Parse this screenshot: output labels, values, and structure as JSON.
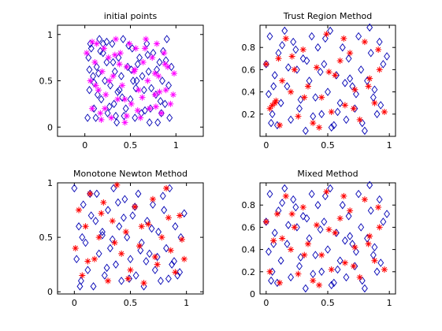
{
  "colors": {
    "blue_diamond": "#0000b4",
    "magenta_star": "#ff00ff",
    "red_star": "#ff0000"
  },
  "chart_data": [
    {
      "type": "scatter",
      "title": "initial points",
      "xlim": [
        -0.3,
        1.3
      ],
      "ylim": [
        -0.1,
        1.1
      ],
      "xticks": [
        0,
        0.5,
        1
      ],
      "xtick_labels": [
        "0",
        "0.5",
        "1"
      ],
      "yticks": [
        0,
        0.5,
        1
      ],
      "ytick_labels": [
        "0",
        "0.5",
        "1"
      ],
      "grid": false,
      "series": [
        {
          "marker": "diamond",
          "color": "#0000b4",
          "x": [
            0.03,
            0.05,
            0.04,
            0.06,
            0.1,
            0.09,
            0.07,
            0.12,
            0.14,
            0.13,
            0.16,
            0.18,
            0.2,
            0.22,
            0.25,
            0.24,
            0.28,
            0.3,
            0.32,
            0.33,
            0.35,
            0.37,
            0.38,
            0.4,
            0.42,
            0.45,
            0.47,
            0.5,
            0.52,
            0.55,
            0.57,
            0.6,
            0.62,
            0.65,
            0.68,
            0.7,
            0.72,
            0.75,
            0.78,
            0.8,
            0.82,
            0.85,
            0.88,
            0.9,
            0.92,
            0.95,
            0.15,
            0.27,
            0.43,
            0.58,
            0.73,
            0.86,
            0.2,
            0.36,
            0.51,
            0.66,
            0.83,
            0.1,
            0.31,
            0.48,
            0.63,
            0.79,
            0.93,
            0.05,
            0.24,
            0.41,
            0.56,
            0.71,
            0.89,
            0.17,
            0.34,
            0.53,
            0.69,
            0.84
          ],
          "y": [
            0.1,
            0.4,
            0.75,
            0.9,
            0.2,
            0.55,
            0.85,
            0.1,
            0.35,
            0.65,
            0.95,
            0.3,
            0.8,
            0.5,
            0.15,
            0.7,
            0.45,
            0.9,
            0.25,
            0.6,
            0.05,
            0.75,
            0.4,
            0.55,
            0.95,
            0.2,
            0.65,
            0.3,
            0.85,
            0.1,
            0.5,
            0.75,
            0.15,
            0.4,
            0.9,
            0.6,
            0.2,
            0.8,
            0.35,
            0.05,
            0.7,
            0.5,
            0.25,
            0.95,
            0.45,
            0.65,
            0.58,
            0.22,
            0.12,
            0.68,
            0.42,
            0.82,
            0.9,
            0.38,
            0.62,
            0.18,
            0.28,
            0.48,
            0.7,
            0.88,
            0.55,
            0.62,
            0.1,
            0.62,
            0.92,
            0.32,
            0.42,
            0.05,
            0.72,
            0.82,
            0.12,
            0.5,
            0.78,
            0.15
          ]
        },
        {
          "marker": "star",
          "color": "#ff00ff",
          "x": [
            0.02,
            0.06,
            0.08,
            0.11,
            0.13,
            0.15,
            0.17,
            0.19,
            0.21,
            0.23,
            0.26,
            0.29,
            0.31,
            0.34,
            0.36,
            0.39,
            0.41,
            0.44,
            0.46,
            0.49,
            0.51,
            0.54,
            0.56,
            0.59,
            0.61,
            0.64,
            0.67,
            0.69,
            0.71,
            0.74,
            0.77,
            0.79,
            0.81,
            0.84,
            0.87,
            0.89,
            0.91,
            0.94,
            0.97,
            0.12,
            0.22,
            0.33,
            0.44,
            0.55,
            0.66,
            0.77,
            0.88,
            0.08,
            0.27,
            0.46,
            0.63,
            0.82,
            0.18,
            0.38,
            0.58,
            0.78,
            0.98
          ],
          "y": [
            0.8,
            0.5,
            0.2,
            0.7,
            0.9,
            0.4,
            0.15,
            0.6,
            0.85,
            0.35,
            0.75,
            0.1,
            0.55,
            0.95,
            0.3,
            0.8,
            0.45,
            0.05,
            0.65,
            0.9,
            0.25,
            0.6,
            0.85,
            0.4,
            0.1,
            0.7,
            0.95,
            0.5,
            0.2,
            0.75,
            0.35,
            0.9,
            0.55,
            0.15,
            0.8,
            0.4,
            0.65,
            0.25,
            0.35,
            0.45,
            0.2,
            0.78,
            0.3,
            0.62,
            0.85,
            0.58,
            0.68,
            0.92,
            0.5,
            0.12,
            0.32,
            0.38,
            0.08,
            0.68,
            0.18,
            0.22,
            0.58
          ]
        }
      ]
    },
    {
      "type": "scatter",
      "title": "Trust Region Method",
      "xlim": [
        -0.05,
        1.05
      ],
      "ylim": [
        0,
        1.0
      ],
      "xticks": [
        0,
        0.5,
        1
      ],
      "xtick_labels": [
        "0",
        "0.5",
        "1"
      ],
      "yticks": [
        0.2,
        0.4,
        0.6,
        0.8
      ],
      "ytick_labels": [
        "0.2",
        "0.4",
        "0.6",
        "0.8"
      ],
      "grid": false,
      "series": [
        {
          "marker": "diamond",
          "color": "#0000b4",
          "x": [
            0.0,
            0.02,
            0.03,
            0.05,
            0.07,
            0.09,
            0.1,
            0.12,
            0.15,
            0.17,
            0.2,
            0.22,
            0.25,
            0.27,
            0.3,
            0.32,
            0.35,
            0.37,
            0.4,
            0.42,
            0.45,
            0.47,
            0.5,
            0.52,
            0.55,
            0.57,
            0.6,
            0.62,
            0.65,
            0.67,
            0.7,
            0.72,
            0.75,
            0.77,
            0.8,
            0.82,
            0.85,
            0.87,
            0.9,
            0.92,
            0.95,
            0.98,
            0.06,
            0.18,
            0.28,
            0.38,
            0.48,
            0.58,
            0.68,
            0.78,
            0.88,
            0.13,
            0.33,
            0.53,
            0.73,
            0.93,
            0.04,
            0.24,
            0.44,
            0.64,
            0.84
          ],
          "y": [
            0.65,
            0.38,
            0.9,
            0.2,
            0.55,
            0.1,
            0.75,
            0.3,
            0.95,
            0.45,
            0.15,
            0.85,
            0.6,
            0.25,
            0.7,
            0.05,
            0.5,
            0.9,
            0.35,
            0.8,
            0.2,
            0.65,
            0.4,
            0.95,
            0.1,
            0.55,
            0.3,
            0.8,
            0.15,
            0.7,
            0.45,
            0.25,
            0.9,
            0.6,
            0.05,
            0.5,
            0.75,
            0.35,
            0.2,
            0.85,
            0.65,
            0.72,
            0.45,
            0.62,
            0.33,
            0.18,
            0.88,
            0.22,
            0.52,
            0.12,
            0.42,
            0.82,
            0.68,
            0.08,
            0.38,
            0.28,
            0.12,
            0.78,
            0.58,
            0.48,
            0.98
          ]
        },
        {
          "marker": "star",
          "color": "#ff0000",
          "x": [
            0.0,
            0.03,
            0.05,
            0.07,
            0.08,
            0.1,
            0.13,
            0.16,
            0.2,
            0.23,
            0.26,
            0.3,
            0.34,
            0.38,
            0.41,
            0.45,
            0.49,
            0.53,
            0.56,
            0.6,
            0.64,
            0.68,
            0.72,
            0.76,
            0.8,
            0.84,
            0.88,
            0.92,
            0.96,
            0.11,
            0.21,
            0.31,
            0.43,
            0.51,
            0.63,
            0.71,
            0.83,
            0.91
          ],
          "y": [
            0.65,
            0.25,
            0.28,
            0.3,
            0.32,
            0.7,
            0.5,
            0.88,
            0.4,
            0.6,
            0.18,
            0.78,
            0.45,
            0.12,
            0.62,
            0.35,
            0.92,
            0.22,
            0.55,
            0.68,
            0.28,
            0.75,
            0.42,
            0.15,
            0.85,
            0.52,
            0.3,
            0.6,
            0.22,
            0.1,
            0.72,
            0.35,
            0.08,
            0.58,
            0.88,
            0.25,
            0.45,
            0.78
          ]
        }
      ]
    },
    {
      "type": "scatter",
      "title": "Monotone Newton Method",
      "xlim": [
        -0.15,
        1.15
      ],
      "ylim": [
        -0.02,
        1.0
      ],
      "xticks": [
        0,
        0.5,
        1
      ],
      "xtick_labels": [
        "0",
        "0.5",
        "1"
      ],
      "yticks": [
        0,
        0.5,
        1
      ],
      "ytick_labels": [
        "0",
        "0.5",
        "1"
      ],
      "grid": false,
      "series": [
        {
          "marker": "diamond",
          "color": "#0000b4",
          "x": [
            0.0,
            0.02,
            0.04,
            0.06,
            0.08,
            0.1,
            0.12,
            0.15,
            0.17,
            0.2,
            0.22,
            0.25,
            0.27,
            0.3,
            0.32,
            0.35,
            0.37,
            0.4,
            0.42,
            0.45,
            0.47,
            0.5,
            0.52,
            0.55,
            0.57,
            0.6,
            0.62,
            0.65,
            0.67,
            0.7,
            0.72,
            0.75,
            0.77,
            0.8,
            0.82,
            0.85,
            0.87,
            0.9,
            0.92,
            0.95,
            0.98,
            0.07,
            0.19,
            0.29,
            0.39,
            0.49,
            0.59,
            0.69,
            0.79,
            0.89,
            0.14,
            0.34,
            0.54,
            0.74,
            0.94,
            0.05,
            0.25,
            0.44,
            0.64,
            0.84
          ],
          "y": [
            0.95,
            0.3,
            0.6,
            0.1,
            0.8,
            0.45,
            0.2,
            0.7,
            0.05,
            0.9,
            0.35,
            0.55,
            0.15,
            0.75,
            0.4,
            0.95,
            0.25,
            0.6,
            0.1,
            0.85,
            0.5,
            0.3,
            0.7,
            0.15,
            0.9,
            0.45,
            0.05,
            0.65,
            0.35,
            0.8,
            0.2,
            0.55,
            0.1,
            0.75,
            0.4,
            0.95,
            0.25,
            0.6,
            0.15,
            0.5,
            0.72,
            0.5,
            0.65,
            0.22,
            0.82,
            0.12,
            0.38,
            0.58,
            0.88,
            0.28,
            0.9,
            0.48,
            0.78,
            0.32,
            0.18,
            0.05,
            0.52,
            0.68,
            0.28,
            0.12
          ]
        },
        {
          "marker": "star",
          "color": "#ff0000",
          "x": [
            0.01,
            0.04,
            0.07,
            0.1,
            0.14,
            0.18,
            0.22,
            0.26,
            0.3,
            0.34,
            0.38,
            0.42,
            0.46,
            0.5,
            0.54,
            0.58,
            0.62,
            0.66,
            0.7,
            0.74,
            0.78,
            0.82,
            0.86,
            0.9,
            0.94,
            0.98,
            0.12,
            0.24,
            0.36,
            0.48,
            0.6,
            0.72,
            0.84,
            0.96
          ],
          "y": [
            0.4,
            0.75,
            0.15,
            0.6,
            0.9,
            0.3,
            0.5,
            0.82,
            0.1,
            0.65,
            0.98,
            0.35,
            0.55,
            0.2,
            0.78,
            0.42,
            0.08,
            0.62,
            0.85,
            0.25,
            0.5,
            0.95,
            0.38,
            0.18,
            0.7,
            0.3,
            0.28,
            0.72,
            0.45,
            0.12,
            0.6,
            0.32,
            0.68,
            0.48
          ]
        }
      ]
    },
    {
      "type": "scatter",
      "title": "Mixed Method",
      "xlim": [
        -0.05,
        1.05
      ],
      "ylim": [
        0,
        1.0
      ],
      "xticks": [
        0,
        0.5,
        1
      ],
      "xtick_labels": [
        "0",
        "0.5",
        "1"
      ],
      "yticks": [
        0,
        0.2,
        0.4,
        0.6,
        0.8
      ],
      "ytick_labels": [
        "0",
        "0.2",
        "0.4",
        "0.6",
        "0.8"
      ],
      "grid": false,
      "series": [
        {
          "marker": "diamond",
          "color": "#0000b4",
          "x": [
            0.0,
            0.02,
            0.03,
            0.05,
            0.07,
            0.09,
            0.1,
            0.12,
            0.15,
            0.17,
            0.2,
            0.22,
            0.25,
            0.27,
            0.3,
            0.32,
            0.35,
            0.37,
            0.4,
            0.42,
            0.45,
            0.47,
            0.5,
            0.52,
            0.55,
            0.57,
            0.6,
            0.62,
            0.65,
            0.67,
            0.7,
            0.72,
            0.75,
            0.77,
            0.8,
            0.82,
            0.85,
            0.87,
            0.9,
            0.92,
            0.95,
            0.98,
            0.06,
            0.18,
            0.28,
            0.38,
            0.48,
            0.58,
            0.68,
            0.78,
            0.88,
            0.13,
            0.33,
            0.53,
            0.73,
            0.93,
            0.04,
            0.24,
            0.44,
            0.64,
            0.84
          ],
          "y": [
            0.65,
            0.38,
            0.9,
            0.2,
            0.55,
            0.1,
            0.75,
            0.3,
            0.95,
            0.45,
            0.15,
            0.85,
            0.6,
            0.25,
            0.7,
            0.05,
            0.5,
            0.9,
            0.35,
            0.8,
            0.2,
            0.65,
            0.4,
            0.95,
            0.1,
            0.55,
            0.3,
            0.8,
            0.15,
            0.7,
            0.45,
            0.25,
            0.9,
            0.6,
            0.05,
            0.5,
            0.75,
            0.35,
            0.2,
            0.85,
            0.65,
            0.72,
            0.45,
            0.62,
            0.33,
            0.18,
            0.88,
            0.22,
            0.52,
            0.12,
            0.42,
            0.82,
            0.68,
            0.08,
            0.38,
            0.28,
            0.12,
            0.78,
            0.58,
            0.48,
            0.98
          ]
        },
        {
          "marker": "star",
          "color": "#ff0000",
          "x": [
            0.0,
            0.03,
            0.06,
            0.09,
            0.13,
            0.16,
            0.2,
            0.23,
            0.26,
            0.3,
            0.34,
            0.38,
            0.41,
            0.45,
            0.49,
            0.53,
            0.56,
            0.6,
            0.64,
            0.68,
            0.72,
            0.76,
            0.8,
            0.84,
            0.88,
            0.92,
            0.96,
            0.11,
            0.21,
            0.31,
            0.43,
            0.51,
            0.63,
            0.71,
            0.83,
            0.91
          ],
          "y": [
            0.65,
            0.2,
            0.48,
            0.72,
            0.5,
            0.88,
            0.4,
            0.6,
            0.18,
            0.78,
            0.45,
            0.12,
            0.62,
            0.35,
            0.92,
            0.22,
            0.55,
            0.68,
            0.28,
            0.75,
            0.42,
            0.15,
            0.85,
            0.52,
            0.3,
            0.6,
            0.22,
            0.1,
            0.72,
            0.35,
            0.08,
            0.58,
            0.88,
            0.25,
            0.45,
            0.78
          ]
        }
      ]
    }
  ]
}
